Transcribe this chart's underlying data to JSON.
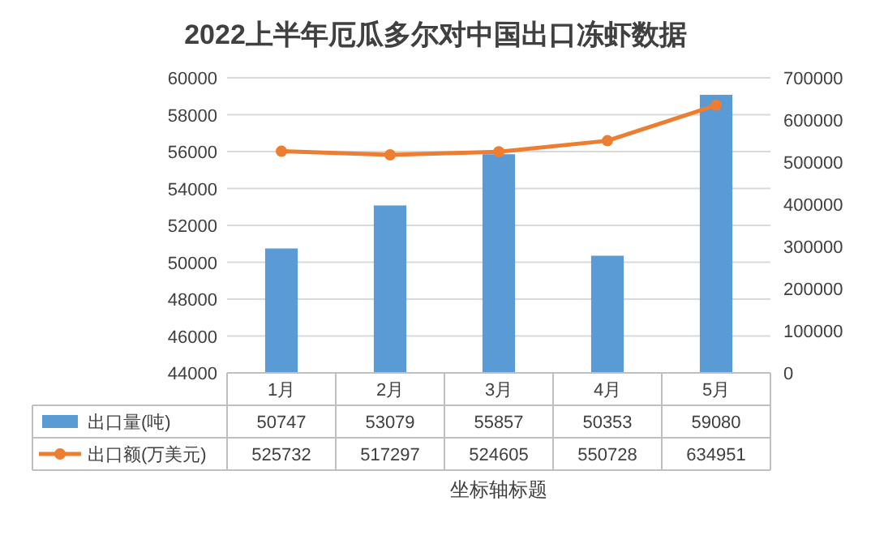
{
  "chart_data": {
    "type": "bar",
    "title": "2022上半年厄瓜多尔对中国出口冻虾数据",
    "xlabel": "坐标轴标题",
    "categories": [
      "1月",
      "2月",
      "3月",
      "4月",
      "5月"
    ],
    "series": [
      {
        "name": "出口量(吨)",
        "color": "#5b9bd5",
        "values": [
          50747,
          53079,
          55857,
          50353,
          59080
        ]
      },
      {
        "name": "出口额(万美元)",
        "type": "line",
        "axis": "y2",
        "color": "#ed7d31",
        "marker": "circle",
        "values": [
          525732,
          517297,
          524605,
          550728,
          634951
        ]
      }
    ],
    "ylim": [
      44000,
      60000
    ],
    "yticks": [
      44000,
      46000,
      48000,
      50000,
      52000,
      54000,
      56000,
      58000,
      60000
    ],
    "y2lim": [
      0,
      700000
    ],
    "y2ticks": [
      0,
      100000,
      200000,
      300000,
      400000,
      500000,
      600000,
      700000
    ],
    "grid": "y",
    "legend": "bottom",
    "data_labels": true
  }
}
